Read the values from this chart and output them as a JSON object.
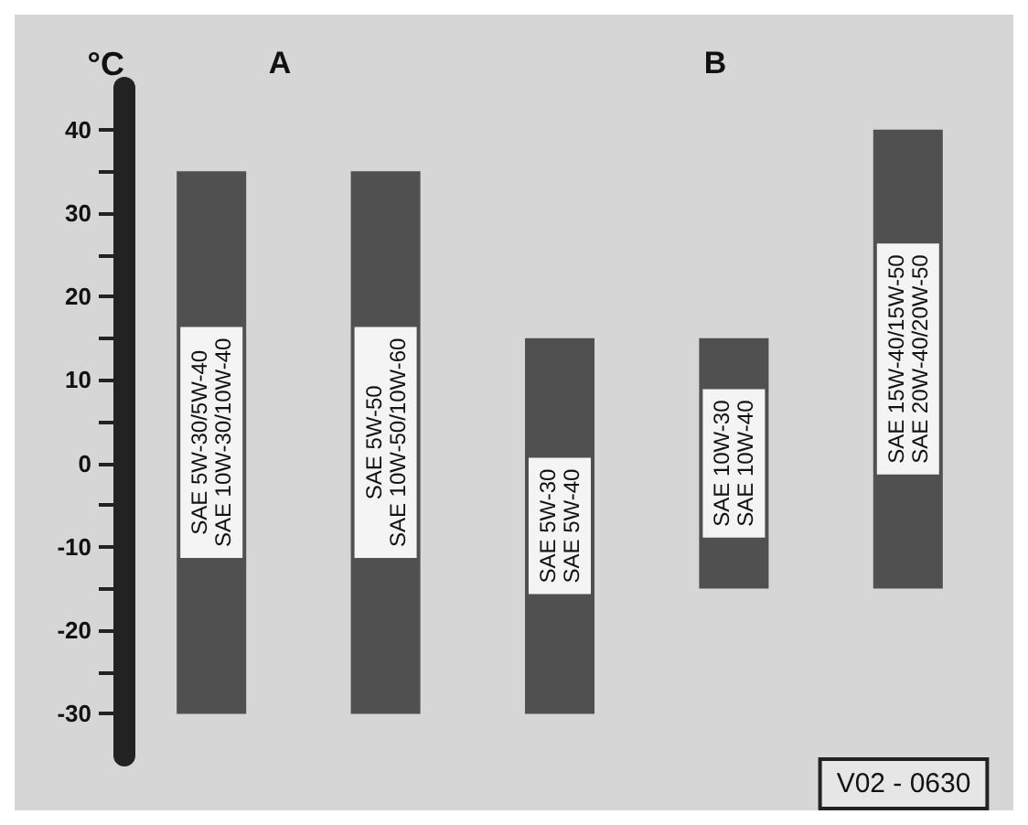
{
  "chart_data": {
    "type": "bar",
    "ylabel": "°C",
    "categories": [
      "SAE 5W-30/5W-40\nSAE 10W-30/10W-40",
      "SAE 5W-50\nSAE 10W-50/10W-60",
      "SAE 5W-30\nSAE 5W-40",
      "SAE 10W-30\nSAE 10W-40",
      "SAE 15W-40/15W-50\nSAE 20W-40/20W-50"
    ],
    "base": [
      -30,
      -30,
      -30,
      -15,
      -15
    ],
    "values": [
      65,
      65,
      45,
      30,
      55
    ],
    "color": "#505050",
    "ylim": [
      -35,
      45
    ],
    "yticks": [
      -30,
      {
        "value": -25,
        "label": null
      },
      -20,
      {
        "value": -15,
        "label": null
      },
      -10,
      {
        "value": -5,
        "label": null
      },
      0,
      {
        "value": 5,
        "label": null
      },
      10,
      {
        "value": 15,
        "label": null
      },
      20,
      {
        "value": 25,
        "label": null
      },
      30,
      {
        "value": 35,
        "label": null
      },
      40
    ],
    "tick_labels": "y",
    "grid": false,
    "annotations": [
      "A",
      "B",
      "V02 - 0630"
    ]
  }
}
